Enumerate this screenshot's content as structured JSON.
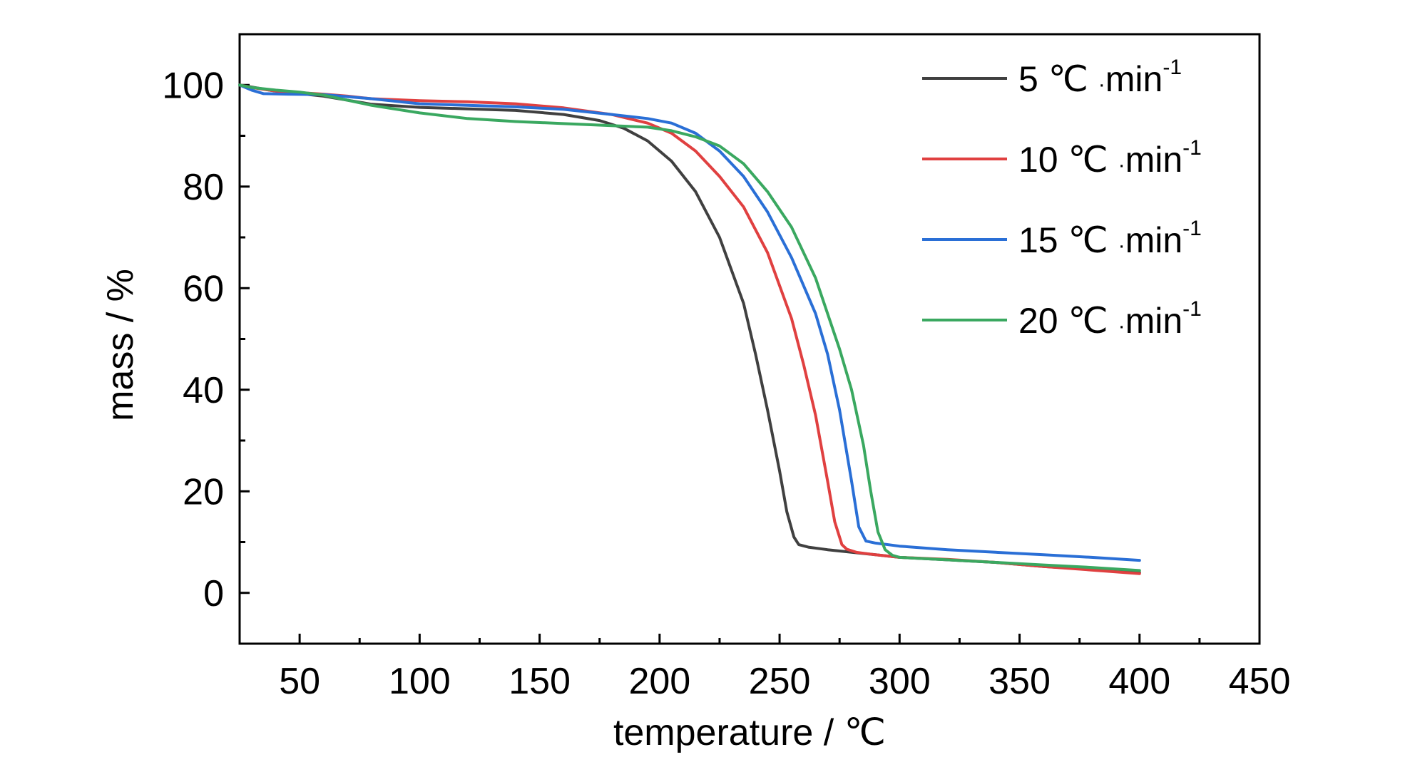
{
  "chart_data": {
    "type": "line",
    "title": "",
    "xlabel": "temperature / ℃",
    "ylabel": "mass / %",
    "xlim": [
      25,
      450
    ],
    "ylim": [
      -10,
      110
    ],
    "xticks": [
      50,
      100,
      150,
      200,
      250,
      300,
      350,
      400,
      450
    ],
    "yticks": [
      0,
      20,
      40,
      60,
      80,
      100
    ],
    "grid": false,
    "legend_position": "top-right",
    "series": [
      {
        "name": "5 ℃·min-1",
        "label_main": "5 ℃",
        "label_unit": "min",
        "label_sup": "-1",
        "color": "#404040",
        "x": [
          25,
          30,
          40,
          60,
          80,
          100,
          120,
          140,
          160,
          175,
          185,
          195,
          205,
          215,
          225,
          235,
          240,
          245,
          250,
          253,
          256,
          258,
          262,
          270,
          280,
          290,
          300,
          320,
          340,
          360,
          380,
          400
        ],
        "y": [
          100,
          99.6,
          98.8,
          97.8,
          96.2,
          95.6,
          95.3,
          95,
          94.2,
          93,
          91.5,
          89,
          85,
          79,
          70,
          57,
          47,
          36,
          24,
          16,
          11,
          9.5,
          9,
          8.5,
          8,
          7.5,
          7,
          6.5,
          6,
          5.2,
          4.6,
          4
        ]
      },
      {
        "name": "10 ℃·min-1",
        "label_main": "10 ℃",
        "label_unit": "min",
        "label_sup": "-1",
        "color": "#e04040",
        "x": [
          25,
          30,
          40,
          60,
          70,
          80,
          100,
          120,
          140,
          160,
          180,
          195,
          205,
          215,
          225,
          235,
          245,
          255,
          260,
          265,
          270,
          273,
          276,
          278,
          282,
          290,
          300,
          320,
          340,
          360,
          380,
          400
        ],
        "y": [
          100,
          99.5,
          98.8,
          98.2,
          97.8,
          97.3,
          96.9,
          96.7,
          96.3,
          95.5,
          94.2,
          92.5,
          90.5,
          87,
          82,
          76,
          67,
          54,
          45,
          35,
          22,
          14,
          9.5,
          8.6,
          8,
          7.5,
          7,
          6.6,
          6,
          5.2,
          4.5,
          3.8
        ]
      },
      {
        "name": "15 ℃·min-1",
        "label_main": "15 ℃",
        "label_unit": "min",
        "label_sup": "-1",
        "color": "#2a6fd6",
        "x": [
          25,
          30,
          35,
          45,
          60,
          80,
          100,
          120,
          140,
          160,
          180,
          195,
          205,
          215,
          225,
          235,
          245,
          255,
          265,
          270,
          275,
          280,
          283,
          286,
          290,
          300,
          320,
          340,
          360,
          380,
          400
        ],
        "y": [
          100,
          99,
          98.3,
          98.2,
          98.1,
          97.3,
          96.3,
          96,
          95.7,
          95.2,
          94.2,
          93.4,
          92.5,
          90.5,
          87,
          82,
          75,
          66,
          55,
          47,
          36,
          22,
          13,
          10.2,
          9.8,
          9.2,
          8.5,
          8,
          7.5,
          7,
          6.4
        ]
      },
      {
        "name": "20 ℃·min-1",
        "label_main": "20 ℃",
        "label_unit": "min",
        "label_sup": "-1",
        "color": "#3aa860",
        "x": [
          25,
          30,
          40,
          50,
          60,
          80,
          100,
          120,
          140,
          160,
          180,
          195,
          205,
          215,
          225,
          235,
          245,
          255,
          265,
          275,
          280,
          285,
          288,
          291,
          294,
          297,
          300,
          320,
          340,
          360,
          380,
          400
        ],
        "y": [
          100,
          99.5,
          99,
          98.6,
          98,
          96,
          94.5,
          93.4,
          92.8,
          92.4,
          92,
          91.7,
          91,
          89.8,
          88,
          84.5,
          79,
          72,
          62,
          48,
          40,
          29,
          20,
          12,
          8.5,
          7.4,
          7,
          6.5,
          6,
          5.5,
          5,
          4.4
        ]
      }
    ]
  }
}
